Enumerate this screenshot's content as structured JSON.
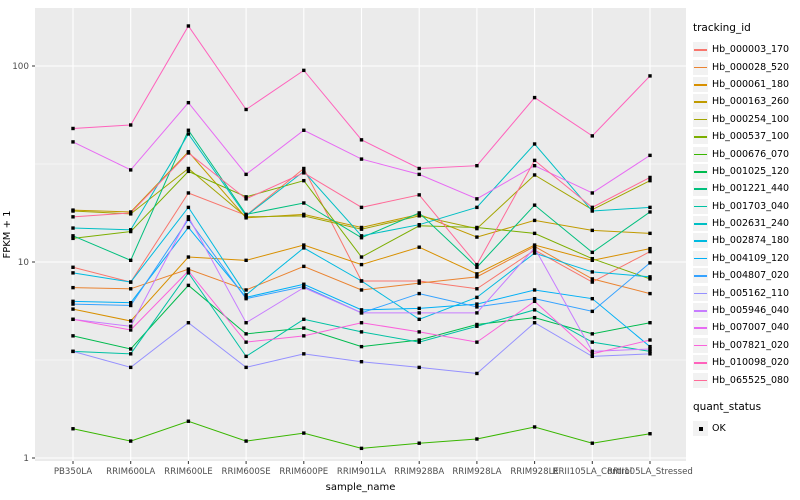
{
  "figure": {
    "background": "#FFFFFF",
    "panel_bg": "#EBEBEB",
    "grid_color": "#FFFFFF",
    "axis_text_color": "#4D4D4D",
    "axis_title_color": "#000000",
    "point_color": "#000000"
  },
  "chart_data": {
    "type": "line",
    "title": "",
    "xlabel": "sample_name",
    "ylabel": "FPKM + 1",
    "yscale": "log10",
    "ylim": [
      0.95,
      200
    ],
    "yticks": [
      1,
      10,
      100
    ],
    "ytick_labels": [
      "1",
      "10",
      "100"
    ],
    "grid": true,
    "legend_position": "right",
    "legend_title": "tracking_id",
    "legend2": {
      "title": "quant_status",
      "items": [
        "OK"
      ]
    },
    "categories": [
      "PB350LA",
      "RRIM600LA",
      "RRIM600LE",
      "RRIM600SE",
      "RRIM600PE",
      "RRIM901LA",
      "RRIM928BA",
      "RRIM928LA",
      "RRIM928LE",
      "RRII105LA_Control",
      "RRII105LA_Stressed"
    ],
    "series": [
      {
        "name": "Hb_000003_170",
        "color": "#F8766D",
        "values": [
          9.4,
          7.9,
          22.5,
          17.3,
          30,
          8.0,
          8.0,
          7.3,
          11.5,
          7.9,
          11.3
        ]
      },
      {
        "name": "Hb_000028_520",
        "color": "#EA8331",
        "values": [
          7.4,
          7.3,
          9.2,
          7.2,
          9.5,
          7.2,
          7.8,
          8.4,
          12.0,
          8.2,
          6.9
        ]
      },
      {
        "name": "Hb_000061_180",
        "color": "#D89000",
        "values": [
          5.75,
          5.0,
          10.6,
          10.2,
          12.2,
          9.7,
          11.9,
          8.7,
          12.2,
          10.2,
          11.7
        ]
      },
      {
        "name": "Hb_000163_260",
        "color": "#C09B00",
        "values": [
          18.4,
          18.0,
          36.5,
          16.8,
          17.5,
          15.0,
          17.5,
          13.4,
          16.3,
          14.5,
          14.0
        ]
      },
      {
        "name": "Hb_000254_100",
        "color": "#A3A500",
        "values": [
          18.2,
          17.6,
          30,
          17.0,
          17.2,
          14.7,
          17.2,
          14.8,
          27.8,
          18.5,
          26
        ]
      },
      {
        "name": "Hb_000537_100",
        "color": "#7CAE00",
        "values": [
          13.2,
          14.3,
          29,
          21.5,
          26,
          10.6,
          15.3,
          15.0,
          14.0,
          10.4,
          8.2
        ]
      },
      {
        "name": "Hb_000676_070",
        "color": "#39B600",
        "values": [
          1.41,
          1.22,
          1.54,
          1.22,
          1.34,
          1.12,
          1.19,
          1.25,
          1.44,
          1.19,
          1.33
        ]
      },
      {
        "name": "Hb_001025_120",
        "color": "#00BB4E",
        "values": [
          4.2,
          3.6,
          7.6,
          4.3,
          4.6,
          3.7,
          4.0,
          4.8,
          5.2,
          4.3,
          4.9
        ]
      },
      {
        "name": "Hb_001221_440",
        "color": "#00BF7D",
        "values": [
          13.6,
          10.2,
          47,
          17.5,
          20,
          13.3,
          17.8,
          9.4,
          19.5,
          11.2,
          18
        ]
      },
      {
        "name": "Hb_001703_040",
        "color": "#00C1A3",
        "values": [
          3.5,
          3.4,
          8.8,
          3.3,
          5.1,
          4.4,
          3.9,
          4.7,
          5.7,
          3.9,
          3.5
        ]
      },
      {
        "name": "Hb_002631_240",
        "color": "#00BFC4",
        "values": [
          14.9,
          14.6,
          45,
          17.2,
          29,
          13.6,
          15.5,
          19,
          40,
          18.2,
          19
        ]
      },
      {
        "name": "Hb_002874_180",
        "color": "#00BAE0",
        "values": [
          8.8,
          7.9,
          19,
          6.8,
          11.8,
          8.0,
          5.1,
          6.6,
          11.1,
          8.9,
          8.4
        ]
      },
      {
        "name": "Hb_004109_120",
        "color": "#00B0F6",
        "values": [
          6.3,
          6.2,
          15,
          6.6,
          7.7,
          5.7,
          5.8,
          6.1,
          7.2,
          6.5,
          3.7
        ]
      },
      {
        "name": "Hb_004807_020",
        "color": "#35A2FF",
        "values": [
          6.1,
          6.0,
          16.5,
          6.5,
          7.5,
          5.5,
          6.9,
          5.9,
          6.5,
          5.6,
          9.9
        ]
      },
      {
        "name": "Hb_005162_110",
        "color": "#9590FF",
        "values": [
          3.5,
          2.9,
          4.9,
          2.9,
          3.4,
          3.1,
          2.9,
          2.7,
          4.9,
          3.3,
          3.4
        ]
      },
      {
        "name": "Hb_005946_040",
        "color": "#C77CFF",
        "values": [
          5.1,
          4.7,
          17,
          4.9,
          7.4,
          5.5,
          5.5,
          5.5,
          11.8,
          3.5,
          3.6
        ]
      },
      {
        "name": "Hb_007007_040",
        "color": "#E76BF3",
        "values": [
          41,
          29.5,
          65,
          28,
          47,
          33.5,
          28,
          21,
          31,
          22.5,
          35
        ]
      },
      {
        "name": "Hb_007821_020",
        "color": "#FA62DB",
        "values": [
          5.1,
          4.5,
          9.0,
          3.9,
          4.2,
          4.9,
          4.4,
          3.9,
          6.3,
          3.4,
          4.0
        ]
      },
      {
        "name": "Hb_010098_020",
        "color": "#FF62BC",
        "values": [
          48,
          50,
          160,
          60,
          95,
          42,
          30,
          31,
          69,
          44,
          89
        ]
      },
      {
        "name": "Hb_065525_080",
        "color": "#FF6A98",
        "values": [
          17.0,
          17.8,
          36,
          21,
          28.5,
          19,
          22,
          9.7,
          33,
          19,
          27
        ]
      }
    ]
  }
}
